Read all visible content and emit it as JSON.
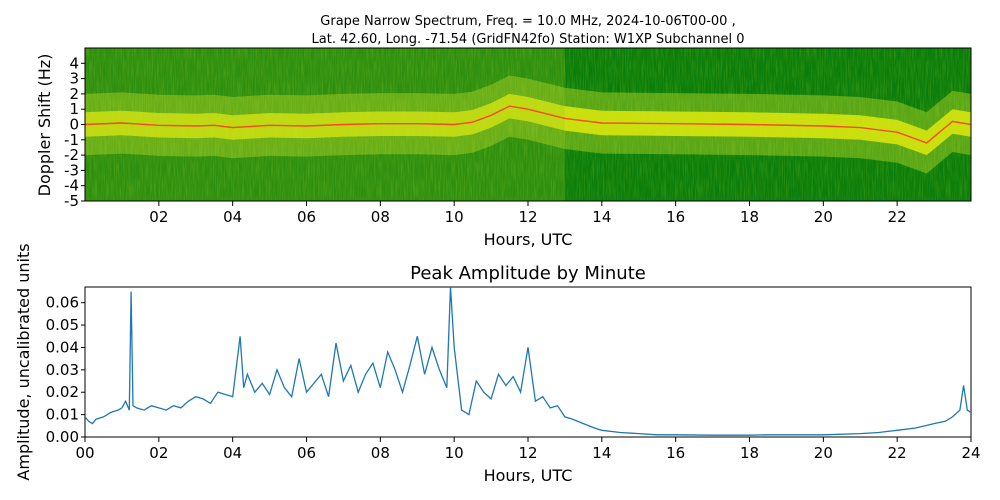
{
  "chart_data": [
    {
      "type": "heatmap",
      "title_line1": "Grape Narrow Spectrum, Freq. = 10.0 MHz, 2024-10-06T00-00 ,",
      "title_line2": "Lat.  42.60, Long. -71.54 (GridFN42fo) Station: W1XP Subchannel 0",
      "xlabel": "Hours, UTC",
      "ylabel": "Doppler Shift (Hz)",
      "xlim": [
        0,
        24
      ],
      "ylim": [
        -5,
        5
      ],
      "x_ticks": [
        2,
        4,
        6,
        8,
        10,
        12,
        14,
        16,
        18,
        20,
        22
      ],
      "x_tick_labels": [
        "02",
        "04",
        "06",
        "08",
        "10",
        "12",
        "14",
        "16",
        "18",
        "20",
        "22"
      ],
      "y_ticks": [
        4,
        3,
        2,
        1,
        0,
        -1,
        -2,
        -3,
        -4,
        -5
      ],
      "y_tick_labels": [
        "4",
        "3",
        "2",
        "1",
        "0",
        "-1",
        "-2",
        "-3",
        "-4",
        "-5"
      ],
      "colors": {
        "background": "#0a7d0a",
        "mid": "#9ac820",
        "high": "#f2f20a",
        "peak": "#ff3020"
      },
      "trace": {
        "x": [
          0,
          1,
          2,
          3,
          3.5,
          4,
          5,
          6,
          7,
          8,
          9,
          10,
          10.5,
          11,
          11.5,
          12,
          13,
          14,
          16,
          18,
          20,
          21,
          22,
          22.8,
          23.5,
          24
        ],
        "y": [
          0,
          0.1,
          -0.05,
          -0.1,
          -0.05,
          -0.2,
          -0.05,
          -0.1,
          0,
          0.05,
          0.05,
          0,
          0.15,
          0.6,
          1.2,
          1.0,
          0.4,
          0.1,
          0.05,
          0,
          -0.1,
          -0.2,
          -0.5,
          -1.2,
          0.2,
          0
        ]
      }
    },
    {
      "type": "line",
      "title": "Peak Amplitude by Minute",
      "xlabel": "Hours, UTC",
      "ylabel": "Amplitude, uncalibrated units",
      "xlim": [
        0,
        24
      ],
      "ylim": [
        0,
        0.067
      ],
      "x_ticks": [
        0,
        2,
        4,
        6,
        8,
        10,
        12,
        14,
        16,
        18,
        20,
        22,
        24
      ],
      "x_tick_labels": [
        "00",
        "02",
        "04",
        "06",
        "08",
        "10",
        "12",
        "14",
        "16",
        "18",
        "20",
        "22",
        "24"
      ],
      "y_ticks": [
        0,
        0.01,
        0.02,
        0.03,
        0.04,
        0.05,
        0.06
      ],
      "y_tick_labels": [
        "0.00",
        "0.01",
        "0.02",
        "0.03",
        "0.04",
        "0.05",
        "0.06"
      ],
      "color": "#1f77b4",
      "series": [
        {
          "x": [
            0,
            0.1,
            0.2,
            0.3,
            0.5,
            0.7,
            0.9,
            1.0,
            1.1,
            1.2,
            1.25,
            1.3,
            1.4,
            1.6,
            1.8,
            2.0,
            2.2,
            2.4,
            2.6,
            2.8,
            3.0,
            3.2,
            3.4,
            3.6,
            3.8,
            4.0,
            4.2,
            4.3,
            4.4,
            4.6,
            4.8,
            5.0,
            5.2,
            5.4,
            5.6,
            5.8,
            6.0,
            6.2,
            6.4,
            6.6,
            6.8,
            7.0,
            7.2,
            7.4,
            7.6,
            7.8,
            8.0,
            8.2,
            8.4,
            8.6,
            8.8,
            9.0,
            9.2,
            9.4,
            9.6,
            9.8,
            9.9,
            10.0,
            10.2,
            10.4,
            10.6,
            10.8,
            11.0,
            11.2,
            11.4,
            11.6,
            11.8,
            12.0,
            12.2,
            12.4,
            12.6,
            12.8,
            13.0,
            13.2,
            13.5,
            13.8,
            14.0,
            14.5,
            15.0,
            15.5,
            16.0,
            17.0,
            18.0,
            18.5,
            19.0,
            20.0,
            21.0,
            21.5,
            22.0,
            22.5,
            23.0,
            23.3,
            23.5,
            23.7,
            23.8,
            23.9,
            24.0
          ],
          "values": [
            0.009,
            0.007,
            0.006,
            0.008,
            0.009,
            0.011,
            0.012,
            0.013,
            0.016,
            0.012,
            0.065,
            0.014,
            0.013,
            0.012,
            0.014,
            0.013,
            0.012,
            0.014,
            0.013,
            0.016,
            0.018,
            0.017,
            0.015,
            0.02,
            0.019,
            0.018,
            0.045,
            0.022,
            0.028,
            0.02,
            0.024,
            0.019,
            0.03,
            0.022,
            0.018,
            0.035,
            0.02,
            0.024,
            0.028,
            0.018,
            0.042,
            0.025,
            0.032,
            0.02,
            0.028,
            0.033,
            0.022,
            0.038,
            0.03,
            0.02,
            0.032,
            0.045,
            0.028,
            0.04,
            0.03,
            0.022,
            0.067,
            0.04,
            0.012,
            0.01,
            0.025,
            0.02,
            0.017,
            0.028,
            0.023,
            0.027,
            0.02,
            0.04,
            0.016,
            0.018,
            0.013,
            0.014,
            0.009,
            0.008,
            0.006,
            0.004,
            0.003,
            0.002,
            0.0015,
            0.001,
            0.001,
            0.0008,
            0.0008,
            0.001,
            0.001,
            0.001,
            0.0015,
            0.002,
            0.003,
            0.004,
            0.006,
            0.007,
            0.009,
            0.012,
            0.023,
            0.012,
            0.011
          ]
        }
      ]
    }
  ]
}
